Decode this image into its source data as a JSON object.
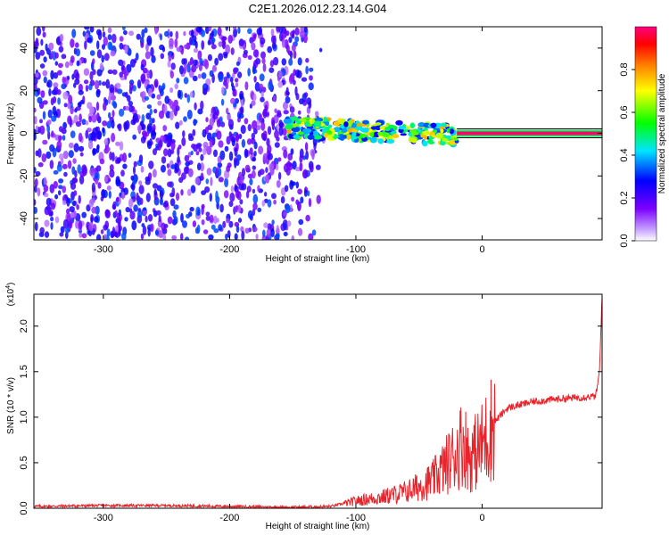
{
  "title": "C2E1.2026.012.23.14.G04",
  "chart_data": [
    {
      "type": "heatmap",
      "xlabel": "Height of straight line (km)",
      "ylabel": "Frequency (Hz)",
      "xlim": [
        -355,
        95
      ],
      "ylim": [
        -50,
        50
      ],
      "x_ticks": [
        -300,
        -200,
        -100,
        0
      ],
      "y_ticks": [
        -40,
        -20,
        0,
        20,
        40
      ],
      "colorbar": {
        "label": "Normalized spectral amplitude",
        "range": [
          0.0,
          1.0
        ],
        "ticks": [
          0.0,
          0.2,
          0.4,
          0.6,
          0.8
        ],
        "stops": [
          "#ffffff",
          "#7b00ff",
          "#0000ff",
          "#00e5ff",
          "#00ff00",
          "#ffff00",
          "#ff8000",
          "#ff0000",
          "#ff00aa"
        ]
      },
      "regions": [
        {
          "desc": "broadband noise",
          "x_range": [
            -355,
            -125
          ],
          "y_range": [
            -50,
            50
          ],
          "amplitude": 0.15
        },
        {
          "desc": "signal onset",
          "x_range": [
            -155,
            -20
          ],
          "y_range": [
            -8,
            12
          ],
          "amplitude": 0.45
        },
        {
          "desc": "carrier line",
          "x_range": [
            -20,
            95
          ],
          "y_range": [
            -1,
            1
          ],
          "amplitude": 0.95
        }
      ]
    },
    {
      "type": "line",
      "xlabel": "Height of straight line (km)",
      "ylabel": "SNR (10 * v/v)",
      "y_scale_label": "(x10^4)",
      "xlim": [
        -355,
        95
      ],
      "ylim": [
        0,
        2.35
      ],
      "x_ticks": [
        -300,
        -200,
        -100,
        0
      ],
      "y_ticks": [
        0.0,
        0.5,
        1.0,
        1.5,
        2.0
      ],
      "series": [
        {
          "color": "#e8232a",
          "x": [
            -355,
            -300,
            -250,
            -200,
            -150,
            -120,
            -100,
            -80,
            -60,
            -40,
            -30,
            -20,
            -15,
            -10,
            0,
            10,
            20,
            40,
            60,
            80,
            90,
            93,
            95
          ],
          "y": [
            0.02,
            0.03,
            0.03,
            0.02,
            0.01,
            0.02,
            0.08,
            0.12,
            0.18,
            0.3,
            0.45,
            0.62,
            0.75,
            0.55,
            0.7,
            0.95,
            1.1,
            1.17,
            1.2,
            1.22,
            1.23,
            1.5,
            2.35
          ]
        }
      ]
    }
  ],
  "icons": {
    "colorbar": "colorbar-gradient"
  }
}
